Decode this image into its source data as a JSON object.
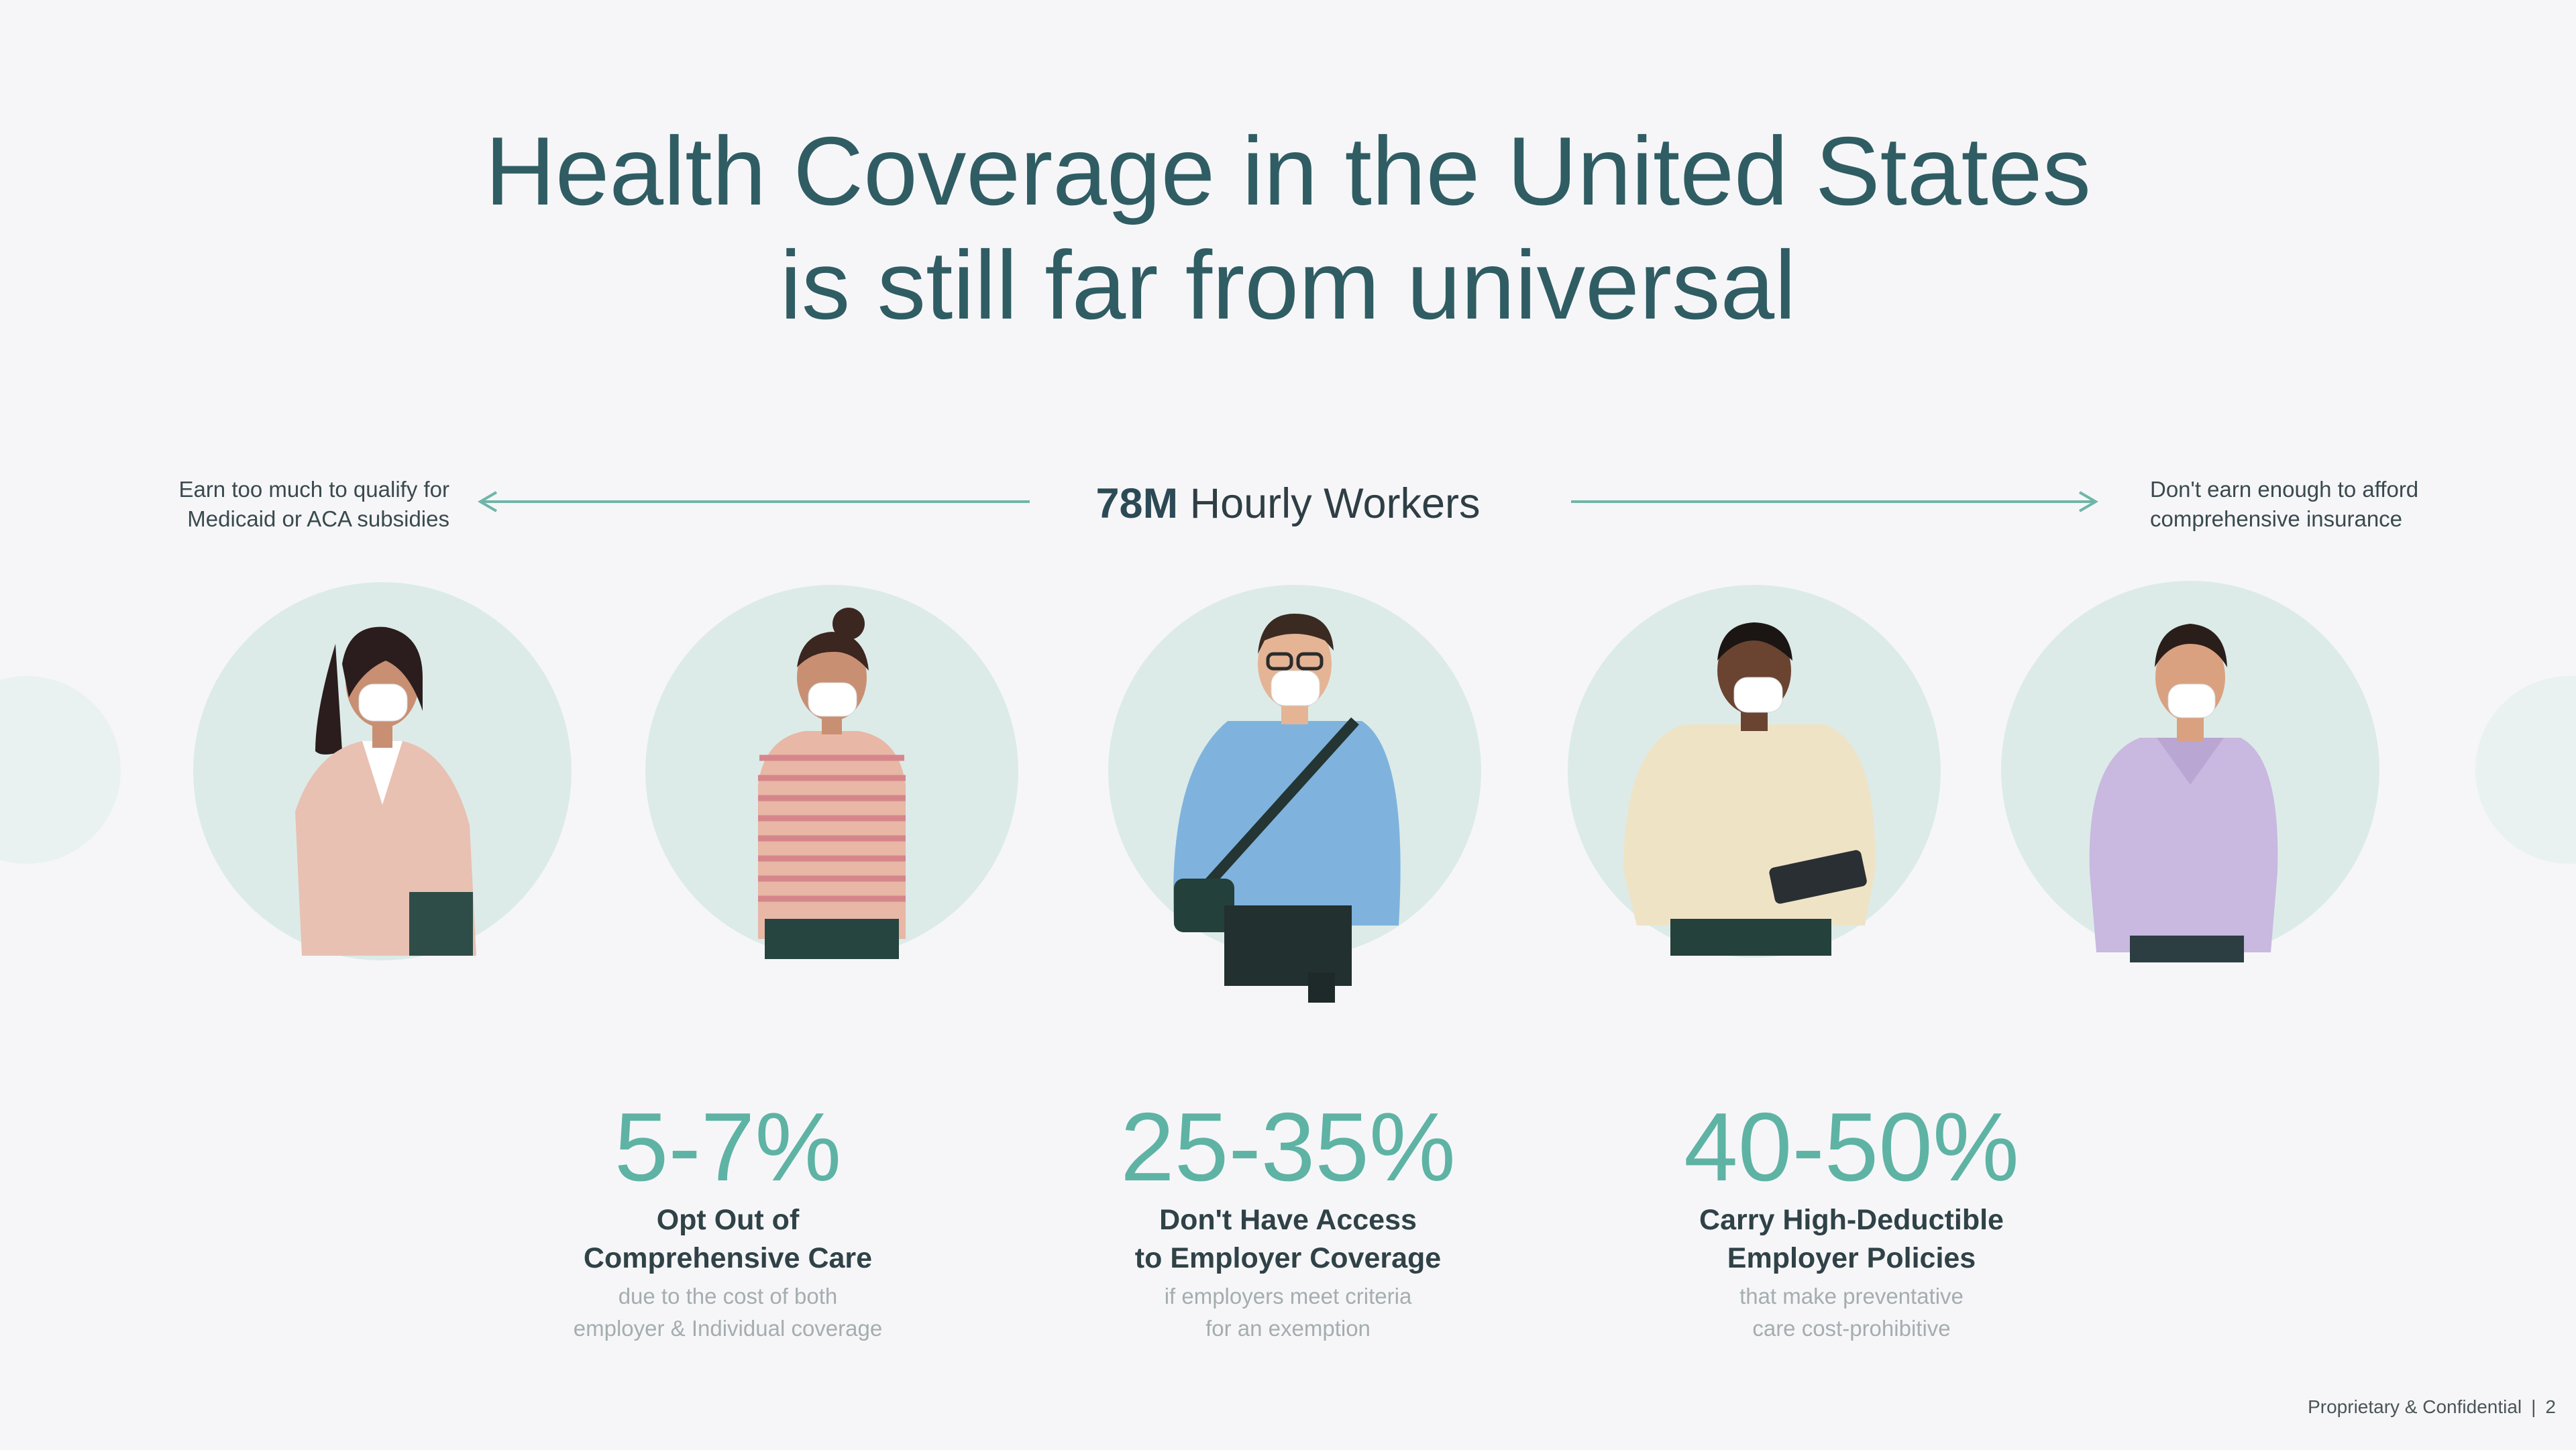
{
  "title": {
    "line1": "Health Coverage in the United States",
    "line2": "is still far from universal"
  },
  "workers": {
    "number": "78M",
    "label": "Hourly Workers"
  },
  "left_note": {
    "line1": "Earn too much to qualify for",
    "line2": "Medicaid or ACA subsidies"
  },
  "right_note": {
    "line1": "Don't earn enough to afford",
    "line2": "comprehensive insurance"
  },
  "stats": [
    {
      "value": "5-7%",
      "label_line1": "Opt Out of",
      "label_line2": "Comprehensive Care",
      "sub_line1": "due to the cost of both",
      "sub_line2": "employer & Individual coverage"
    },
    {
      "value": "25-35%",
      "label_line1": "Don't Have Access",
      "label_line2": "to Employer Coverage",
      "sub_line1": "if employers meet criteria",
      "sub_line2": "for an exemption"
    },
    {
      "value": "40-50%",
      "label_line1": "Carry High-Deductible",
      "label_line2": "Employer Policies",
      "sub_line1": "that make preventative",
      "sub_line2": "care cost-prohibitive"
    }
  ],
  "footer": {
    "text": "Proprietary & Confidential",
    "sep": "|",
    "page": "2"
  },
  "colors": {
    "title": "#2f5d63",
    "accent": "#5eb3a4",
    "circle": "#dcebe8"
  },
  "people": [
    {
      "icon": "woman-blazer-illustration"
    },
    {
      "icon": "woman-striped-shirt-illustration"
    },
    {
      "icon": "man-blue-shirt-bag-illustration"
    },
    {
      "icon": "man-sweater-tablet-illustration"
    },
    {
      "icon": "man-purple-polo-illustration"
    }
  ]
}
